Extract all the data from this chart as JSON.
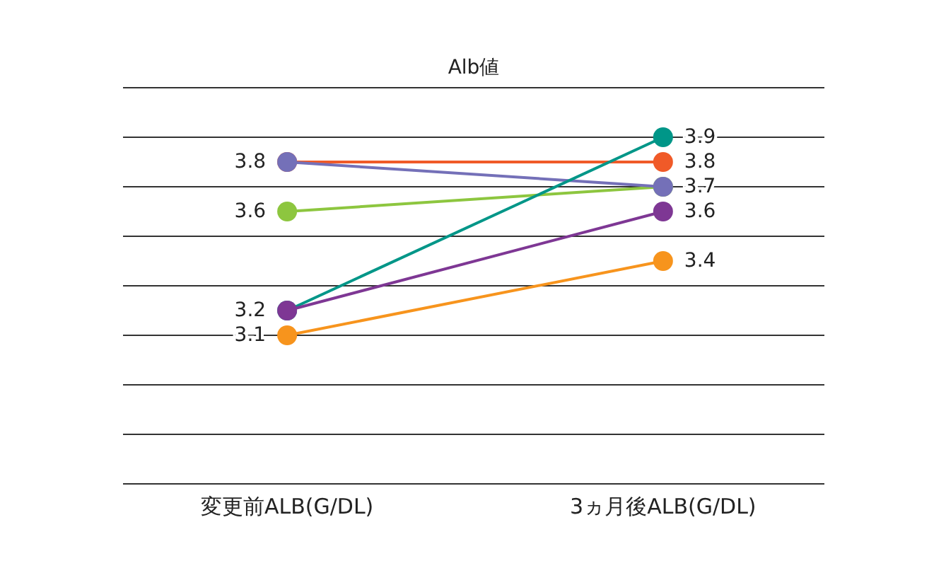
{
  "chart_data": {
    "type": "line",
    "title": "Alb値",
    "categories": [
      "変更前ALB(G/DL)",
      "3ヵ月後ALB(G/DL)"
    ],
    "series": [
      {
        "color": "#f05a28",
        "values": [
          3.8,
          3.8
        ],
        "value_labels": [
          null,
          "3.8"
        ]
      },
      {
        "color": "#8dc63f",
        "values": [
          3.6,
          3.7
        ],
        "value_labels": [
          "3.6",
          null
        ]
      },
      {
        "color": "#7470b8",
        "values": [
          3.8,
          3.7
        ],
        "value_labels": [
          "3.8",
          "3.7"
        ]
      },
      {
        "color": "#009688",
        "values": [
          3.2,
          3.9
        ],
        "value_labels": [
          null,
          "3.9"
        ]
      },
      {
        "color": "#7e3794",
        "values": [
          3.2,
          3.6
        ],
        "value_labels": [
          "3.2",
          "3.6"
        ]
      },
      {
        "color": "#f7941d",
        "values": [
          3.1,
          3.4
        ],
        "value_labels": [
          "3.1",
          "3.4"
        ]
      }
    ],
    "ylim": [
      2.5,
      4.1
    ],
    "yticks": [
      {
        "value": 2.5,
        "label": null
      },
      {
        "value": 2.7,
        "label": null
      },
      {
        "value": 2.9,
        "label": null
      },
      {
        "value": 3.1,
        "label": null
      },
      {
        "value": 3.3,
        "label": null
      },
      {
        "value": 3.5,
        "label": null
      },
      {
        "value": 3.7,
        "label": null
      },
      {
        "value": 3.9,
        "label": null
      },
      {
        "value": 4.1,
        "label": null
      }
    ],
    "grid": "y",
    "marker": "circle",
    "line_style": "solid"
  }
}
